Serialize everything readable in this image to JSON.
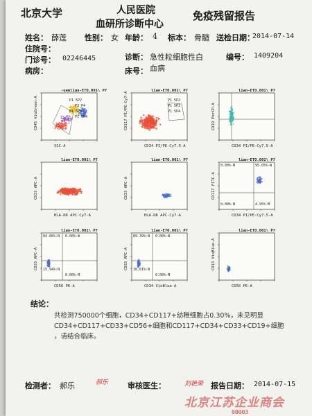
{
  "header": {
    "org_left": "北京大学",
    "org_center_1": "人民医院",
    "org_center_2": "血研所诊断中心",
    "report_title": "免疫残留报告"
  },
  "patient": {
    "name_label": "姓名：",
    "name": "薛莲",
    "sex_label": "性别：",
    "sex": "女",
    "age_label": "年龄：",
    "age": "4",
    "specimen_label": "标本：",
    "specimen": "骨髓",
    "send_date_label": "送检日期：",
    "send_date": "2014-07-14",
    "inpatient_label": "住院号：",
    "outpatient_label": "门诊号：",
    "outpatient": "02246445",
    "diagnosis_label": "诊断：",
    "diagnosis_1": "急性粒细胞性白",
    "diagnosis_2": "血病",
    "number_label": "编号：",
    "number": "1409204",
    "ward_label": "病房：",
    "bed_label": "床号："
  },
  "plots": [
    {
      "title": "-uemlian-ETO.001\\ P7",
      "xlabel": "SSC-A",
      "ylabel": "CD45 VioGreen-A",
      "type": "multi",
      "gates": [
        "P1 5P2",
        "P3 P4",
        "P1 5P3",
        "P1 5P4"
      ]
    },
    {
      "title": "lian-ETO.001\\ P7",
      "xlabel": "CD34 PI/PE-Cy7.5-A",
      "ylabel": "CD117 PI/PE-Cy7-A",
      "type": "big",
      "gates": [
        "P1 5P2",
        "P1 5P3",
        "P1 5P4"
      ]
    },
    {
      "title": "lian-ETO.001\\ P7",
      "xlabel": "CD34 PI/PE-Cy7.5-A",
      "ylabel": "CD19 PerCP-A",
      "type": "teal",
      "gates": []
    },
    {
      "title": "lian-ETO.001\\ P7",
      "xlabel": "HLA-DR APC-Cy7-A",
      "ylabel": "CD33 APC-A",
      "type": "band",
      "gates": []
    },
    {
      "title": "lian-ETO.001\\ P7",
      "xlabel": "HLA-DR APC-Cy7-A",
      "ylabel": "CD33 APC-A",
      "type": "cluster",
      "gates": []
    },
    {
      "title": "lian-ETO.001\\ P7",
      "xlabel": "CD34 PI/PE-Cy7.5-A",
      "ylabel": "CD117 FITC-A",
      "type": "quad",
      "gates": [
        "0.00%-N",
        "95.05%-W",
        "0.00%-N",
        "4.95%-M"
      ]
    },
    {
      "title": "lian-ETO.001\\ P7",
      "xlabel": "CD56 PE-A",
      "ylabel": "CD33 APC-A",
      "type": "quadL",
      "gates": [
        "84.06%-N",
        "0.00%-W",
        "15.94%-N",
        "0.00%-M"
      ]
    },
    {
      "title": "lian-ETO.001\\ P7",
      "xlabel": "CD34 VioBlue-A",
      "ylabel": "CD33 APC-A",
      "type": "quadL",
      "gates": [
        "89.39%-N",
        "0.00%-W",
        "10.61%-N",
        "0.00%-M"
      ]
    },
    {
      "title": "lian-ETO.001\\ P7",
      "xlabel": "CD56 PE-A",
      "ylabel": "CD13 VioBlue-A",
      "type": "corner",
      "gates": []
    }
  ],
  "conclusion": {
    "label": "结论：",
    "line1": "共检测750000个细胞，CD34+CD117+幼稚细胞占0.30%，未见明显",
    "line2": "CD34+CD117+CD33+CD56+细胞和CD117+CD34+CD33+CD19+细胞",
    "line3": "，请结合临床。"
  },
  "footer": {
    "tester_label": "检测者：",
    "tester": "郝乐",
    "tester_sig": "郝乐",
    "reviewer_label": "审核医生：",
    "reviewer_sig": "刘艳荣",
    "report_date_label": "报告日期：",
    "report_date": "2014-07-15",
    "watermark": "北京江苏企业商会",
    "bottom_code": "00003"
  },
  "colors": {
    "red": "#e8503a",
    "blue": "#4a6fc4",
    "teal": "#3fb8a8",
    "orange": "#f0a020",
    "purple": "#9b59b6",
    "yellow": "#e8c440"
  }
}
